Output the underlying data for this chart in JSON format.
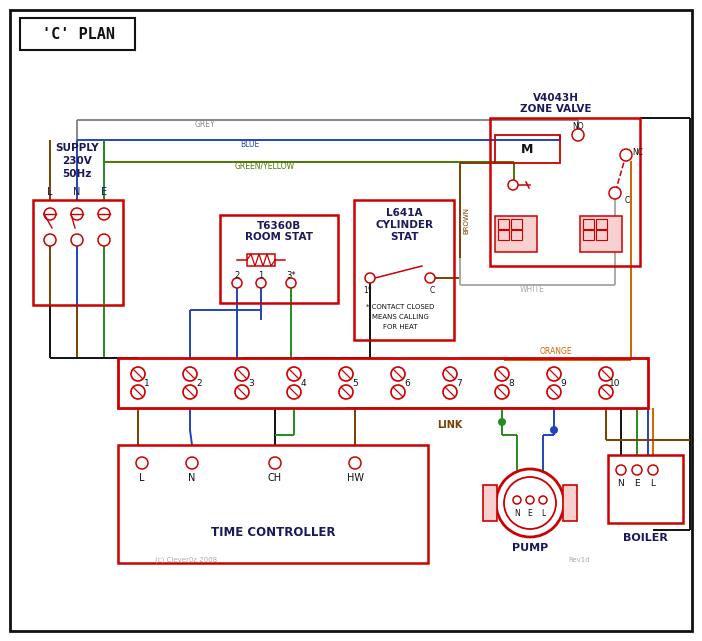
{
  "title": "'C' PLAN",
  "bg_color": "#ffffff",
  "red": "#cc0000",
  "blue": "#2244bb",
  "green": "#228B22",
  "brown": "#7B3F00",
  "black": "#111111",
  "grey": "#888888",
  "orange": "#cc6600",
  "green_yellow": "#4a7a00",
  "white_wire": "#aaaaaa",
  "text_dark": "#1a1a5a",
  "footnote2": "(c) Clever0z 2008",
  "footnote3": "Rev1d"
}
